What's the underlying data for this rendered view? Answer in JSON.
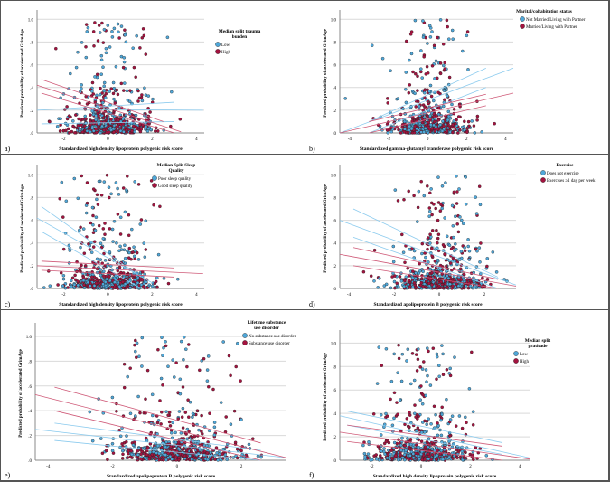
{
  "colors": {
    "group1": "#4fa7d9",
    "group2": "#a3133f",
    "line1": "#8ccbee",
    "line2": "#cf5a78",
    "grid": "#d9d9d9"
  },
  "chart_data": [
    {
      "type": "scatter",
      "panel_label": "a)",
      "xlabel": "Standardized high density lipoprotein polygenic risk score",
      "ylabel": "Predicted probability of accelerated GrimAge",
      "xlim": [
        -3.2,
        4.35
      ],
      "ylim": [
        0,
        1.05
      ],
      "xticks": [
        {
          "v": -2,
          "t": "-2"
        },
        {
          "v": 0,
          "t": "0"
        },
        {
          "v": 2,
          "t": "2"
        },
        {
          "v": 4,
          "t": "4"
        }
      ],
      "yticks": [
        {
          "v": 0,
          "t": ".0"
        },
        {
          "v": 0.2,
          "t": ".2"
        },
        {
          "v": 0.4,
          "t": ".4"
        },
        {
          "v": 0.6,
          "t": ".6"
        },
        {
          "v": 0.8,
          "t": ".8"
        },
        {
          "v": 1,
          "t": "1.0"
        }
      ],
      "legend": {
        "title": "Median split trauma burden",
        "title_lines": [
          "Median split trauma",
          "burden"
        ],
        "entries": [
          "Low",
          "High"
        ]
      },
      "fit_lines": [
        {
          "group": 1,
          "pts": [
            [
              -3.2,
              0.2
            ],
            [
              3.0,
              0.27
            ]
          ]
        },
        {
          "group": 1,
          "pts": [
            [
              -3.2,
              0.21
            ],
            [
              4.3,
              0.2
            ]
          ]
        },
        {
          "group": 1,
          "pts": [
            [
              -3.0,
              0.08
            ],
            [
              3.0,
              0.1
            ]
          ]
        },
        {
          "group": 2,
          "pts": [
            [
              -3.0,
              0.47
            ],
            [
              2.5,
              0.1
            ]
          ]
        },
        {
          "group": 2,
          "pts": [
            [
              -3.2,
              0.42
            ],
            [
              3.3,
              0.01
            ]
          ]
        },
        {
          "group": 2,
          "pts": [
            [
              -3.0,
              0.35
            ],
            [
              3.0,
              0.0
            ]
          ]
        }
      ]
    },
    {
      "type": "scatter",
      "panel_label": "b)",
      "xlabel": "Standardized gamma-glutamyl transferase polygenic risk score",
      "ylabel": "Predicted probability of accelerated GrimAge",
      "xlim": [
        -4.5,
        4.4
      ],
      "ylim": [
        0,
        1.05
      ],
      "xticks": [
        {
          "v": -4,
          "t": "-4"
        },
        {
          "v": -2,
          "t": "-2"
        },
        {
          "v": 0,
          "t": "0"
        },
        {
          "v": 2,
          "t": "2"
        },
        {
          "v": 4,
          "t": "4"
        }
      ],
      "yticks": [
        {
          "v": 0,
          "t": ".0"
        },
        {
          "v": 0.2,
          "t": ".2"
        },
        {
          "v": 0.4,
          "t": ".4"
        },
        {
          "v": 0.6,
          "t": ".6"
        },
        {
          "v": 0.8,
          "t": ".8"
        },
        {
          "v": 1,
          "t": "1.0"
        }
      ],
      "legend": {
        "title": "Marital/cohabitation status",
        "title_lines": [
          "Marital/cohabitation status"
        ],
        "entries": [
          "Not Married/Living with Partner",
          "Married/Living with Partner"
        ]
      },
      "fit_lines": [
        {
          "group": 1,
          "pts": [
            [
              -3.0,
              0.1
            ],
            [
              3.0,
              0.57
            ]
          ]
        },
        {
          "group": 1,
          "pts": [
            [
              -4.5,
              -0.05
            ],
            [
              4.4,
              0.57
            ]
          ]
        },
        {
          "group": 1,
          "pts": [
            [
              -3.0,
              0.0
            ],
            [
              3.0,
              0.4
            ]
          ]
        },
        {
          "group": 2,
          "pts": [
            [
              -3.0,
              0.1
            ],
            [
              3.0,
              0.34
            ]
          ]
        },
        {
          "group": 2,
          "pts": [
            [
              -4.5,
              0.0
            ],
            [
              4.4,
              0.35
            ]
          ]
        },
        {
          "group": 2,
          "pts": [
            [
              -3.0,
              0.0
            ],
            [
              3.0,
              0.24
            ]
          ]
        }
      ]
    },
    {
      "type": "scatter",
      "panel_label": "c)",
      "xlabel": "Standardized high density lipoprotein polygenic risk score",
      "ylabel": "Predicted probability of accelerated GrimAge",
      "xlim": [
        -3.2,
        4.35
      ],
      "ylim": [
        0,
        1.05
      ],
      "xticks": [
        {
          "v": -2,
          "t": "-2"
        },
        {
          "v": 0,
          "t": "0"
        },
        {
          "v": 2,
          "t": "2"
        },
        {
          "v": 4,
          "t": "4"
        }
      ],
      "yticks": [
        {
          "v": 0,
          "t": ".0"
        },
        {
          "v": 0.2,
          "t": ".2"
        },
        {
          "v": 0.4,
          "t": ".4"
        },
        {
          "v": 0.6,
          "t": ".6"
        },
        {
          "v": 0.8,
          "t": ".8"
        },
        {
          "v": 1,
          "t": "1.0"
        }
      ],
      "legend": {
        "title": "Median Split Sleep Quality",
        "title_lines": [
          "Median Split Sleep",
          "Quality"
        ],
        "entries": [
          "Poor sleep quality",
          "Good sleep quality"
        ]
      },
      "fit_lines": [
        {
          "group": 1,
          "pts": [
            [
              -3.0,
              0.72
            ],
            [
              1.5,
              0.1
            ]
          ]
        },
        {
          "group": 1,
          "pts": [
            [
              -3.2,
              0.62
            ],
            [
              2.0,
              0.05
            ]
          ]
        },
        {
          "group": 1,
          "pts": [
            [
              -3.0,
              0.5
            ],
            [
              1.5,
              0.0
            ]
          ]
        },
        {
          "group": 2,
          "pts": [
            [
              -3.0,
              0.24
            ],
            [
              3.0,
              0.18
            ]
          ]
        },
        {
          "group": 2,
          "pts": [
            [
              -3.2,
              0.2
            ],
            [
              4.3,
              0.13
            ]
          ]
        },
        {
          "group": 2,
          "pts": [
            [
              -3.0,
              0.16
            ],
            [
              3.0,
              0.1
            ]
          ]
        }
      ]
    },
    {
      "type": "scatter",
      "panel_label": "d)",
      "xlabel": "Standardized apolipoprotein B polygenic risk score",
      "ylabel": "Predicted probability of accelerated GrimAge",
      "xlim": [
        -4.4,
        3.4
      ],
      "ylim": [
        0,
        1.05
      ],
      "xticks": [
        {
          "v": -4,
          "t": "-4"
        },
        {
          "v": -2,
          "t": "-2"
        },
        {
          "v": 0,
          "t": "0"
        },
        {
          "v": 2,
          "t": "2"
        }
      ],
      "yticks": [
        {
          "v": 0,
          "t": ".0"
        },
        {
          "v": 0.2,
          "t": ".2"
        },
        {
          "v": 0.4,
          "t": ".4"
        },
        {
          "v": 0.6,
          "t": ".6"
        },
        {
          "v": 0.8,
          "t": ".8"
        },
        {
          "v": 1,
          "t": "1.0"
        }
      ],
      "legend": {
        "title": "Exercise",
        "title_lines": [
          "Exercise"
        ],
        "entries": [
          "Does not exercise",
          "Exercises ≥1 day per week"
        ]
      },
      "fit_lines": [
        {
          "group": 1,
          "pts": [
            [
              -3.8,
              0.7
            ],
            [
              2.6,
              0.1
            ]
          ]
        },
        {
          "group": 1,
          "pts": [
            [
              -4.4,
              0.6
            ],
            [
              3.4,
              0.03
            ]
          ]
        },
        {
          "group": 1,
          "pts": [
            [
              -3.8,
              0.45
            ],
            [
              2.6,
              0.0
            ]
          ]
        },
        {
          "group": 2,
          "pts": [
            [
              -3.8,
              0.36
            ],
            [
              2.6,
              0.08
            ]
          ]
        },
        {
          "group": 2,
          "pts": [
            [
              -4.4,
              0.3
            ],
            [
              3.4,
              0.02
            ]
          ]
        },
        {
          "group": 2,
          "pts": [
            [
              -3.8,
              0.2
            ],
            [
              2.6,
              0.0
            ]
          ]
        }
      ]
    },
    {
      "type": "scatter",
      "panel_label": "e)",
      "xlabel": "Standardized apolipoprotein B polygenic risk score",
      "ylabel": "Predicted probability of accelerated GrimAge",
      "xlim": [
        -4.4,
        3.4
      ],
      "ylim": [
        0,
        1.08
      ],
      "xticks": [
        {
          "v": -4,
          "t": "-4"
        },
        {
          "v": -2,
          "t": "-2"
        },
        {
          "v": 0,
          "t": "0"
        },
        {
          "v": 2,
          "t": "2"
        }
      ],
      "yticks": [
        {
          "v": 0,
          "t": ".0"
        },
        {
          "v": 0.2,
          "t": ".2"
        },
        {
          "v": 0.4,
          "t": ".4"
        },
        {
          "v": 0.6,
          "t": ".6"
        },
        {
          "v": 0.8,
          "t": ".8"
        },
        {
          "v": 1,
          "t": "1.0"
        }
      ],
      "legend": {
        "title": "Lifetime substance use disorder",
        "title_lines": [
          "Lifetime substance",
          "use disorder"
        ],
        "entries": [
          "No substance use disorder",
          "Substance use disorder"
        ]
      },
      "fit_lines": [
        {
          "group": 1,
          "pts": [
            [
              -3.8,
              0.3
            ],
            [
              2.6,
              0.08
            ]
          ]
        },
        {
          "group": 1,
          "pts": [
            [
              -4.4,
              0.25
            ],
            [
              3.4,
              0.02
            ]
          ]
        },
        {
          "group": 1,
          "pts": [
            [
              -3.8,
              0.16
            ],
            [
              2.6,
              0.0
            ]
          ]
        },
        {
          "group": 2,
          "pts": [
            [
              -3.8,
              0.59
            ],
            [
              2.6,
              0.14
            ]
          ]
        },
        {
          "group": 2,
          "pts": [
            [
              -4.4,
              0.53
            ],
            [
              3.4,
              0.02
            ]
          ]
        },
        {
          "group": 2,
          "pts": [
            [
              -3.8,
              0.4
            ],
            [
              2.6,
              0.0
            ]
          ]
        }
      ]
    },
    {
      "type": "scatter",
      "panel_label": "f)",
      "xlabel": "Standardized high density lipoprotein polygenic risk score",
      "ylabel": "Predicted probability of accelerated GrimAge",
      "xlim": [
        -3.3,
        4.4
      ],
      "ylim": [
        0,
        1.08
      ],
      "xticks": [
        {
          "v": -2,
          "t": "-2"
        },
        {
          "v": 0,
          "t": "0"
        },
        {
          "v": 2,
          "t": "2"
        },
        {
          "v": 4,
          "t": "4"
        }
      ],
      "yticks": [
        {
          "v": 0,
          "t": ".0"
        },
        {
          "v": 0.2,
          "t": ".2"
        },
        {
          "v": 0.4,
          "t": ".4"
        },
        {
          "v": 0.6,
          "t": ".6"
        },
        {
          "v": 0.8,
          "t": ".8"
        },
        {
          "v": 1,
          "t": "1.0"
        }
      ],
      "legend": {
        "title": "Median split gratitude",
        "title_lines": [
          "Median split",
          "gratitude"
        ],
        "entries": [
          "Low",
          "High"
        ]
      },
      "fit_lines": [
        {
          "group": 1,
          "pts": [
            [
              -3.0,
              0.42
            ],
            [
              3.3,
              0.15
            ]
          ]
        },
        {
          "group": 1,
          "pts": [
            [
              -3.3,
              0.38
            ],
            [
              4.4,
              0.02
            ]
          ]
        },
        {
          "group": 1,
          "pts": [
            [
              -3.0,
              0.3
            ],
            [
              3.3,
              0.05
            ]
          ]
        },
        {
          "group": 2,
          "pts": [
            [
              -3.0,
              0.3
            ],
            [
              3.3,
              0.12
            ]
          ]
        },
        {
          "group": 2,
          "pts": [
            [
              -3.3,
              0.24
            ],
            [
              4.4,
              0.01
            ]
          ]
        },
        {
          "group": 2,
          "pts": [
            [
              -3.0,
              0.16
            ],
            [
              3.3,
              0.0
            ]
          ]
        }
      ]
    }
  ]
}
